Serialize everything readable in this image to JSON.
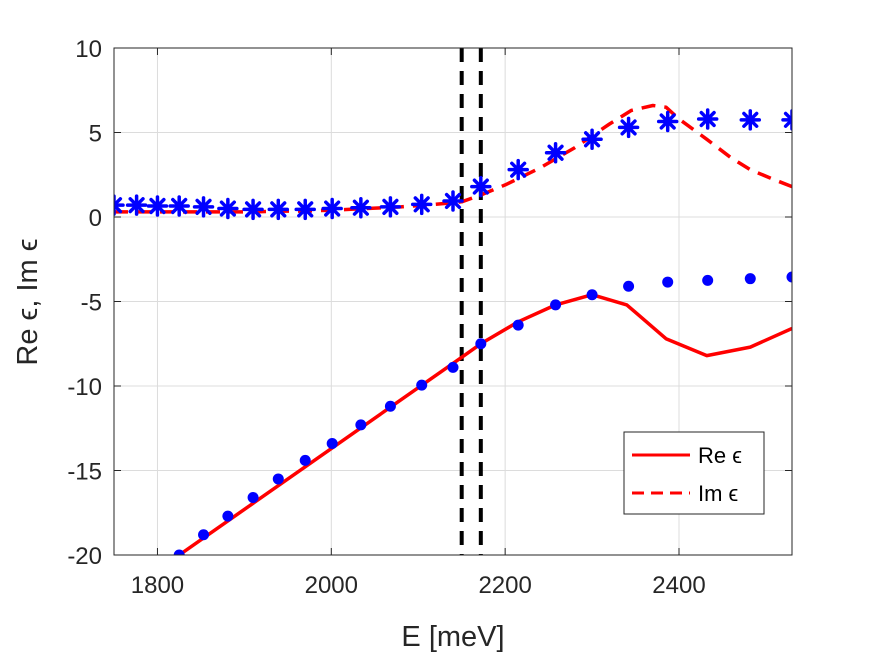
{
  "chart_data": {
    "type": "line",
    "title": "",
    "xlabel": "E [meV]",
    "ylabel": "Re ϵ, Im ϵ",
    "xlim": [
      1750,
      2530
    ],
    "ylim": [
      -20,
      10
    ],
    "xticks": [
      1800,
      2000,
      2200,
      2400
    ],
    "yticks": [
      -20,
      -15,
      -10,
      -5,
      0,
      5,
      10
    ],
    "grid": true,
    "legend_position": "bottom-right",
    "colors": {
      "curve": "#ff0000",
      "marker": "#0000ff",
      "vline": "#000000"
    },
    "series": [
      {
        "name": "Re ϵ",
        "style": "solid",
        "x": [
          1825,
          2150,
          2172,
          2215,
          2258,
          2300,
          2340,
          2385,
          2432,
          2482,
          2530
        ],
        "y": [
          -20,
          -8.3,
          -7.5,
          -6.2,
          -5.2,
          -4.6,
          -5.2,
          -7.2,
          -8.2,
          -7.7,
          -6.6
        ]
      },
      {
        "name": "Im ϵ",
        "style": "dashed",
        "x": [
          1750,
          1780,
          1810,
          1840,
          1880,
          1910,
          1940,
          1970,
          2000,
          2040,
          2080,
          2120,
          2150,
          2172,
          2200,
          2240,
          2280,
          2320,
          2345,
          2370,
          2385,
          2400,
          2432,
          2460,
          2482,
          2510,
          2530
        ],
        "y": [
          0.3,
          0.3,
          0.3,
          0.3,
          0.3,
          0.3,
          0.35,
          0.35,
          0.4,
          0.5,
          0.6,
          0.75,
          0.9,
          1.3,
          1.9,
          2.9,
          4.1,
          5.5,
          6.3,
          6.6,
          6.5,
          5.8,
          4.6,
          3.5,
          2.8,
          2.2,
          1.8
        ]
      },
      {
        "name": "Re ϵ markers",
        "marker": "dot",
        "x": [
          1825,
          1853,
          1881,
          1910,
          1939,
          1970,
          2001,
          2034,
          2068,
          2104,
          2140,
          2172,
          2215,
          2258,
          2300,
          2342,
          2387,
          2433,
          2482,
          2530
        ],
        "y": [
          -20,
          -18.8,
          -17.7,
          -16.6,
          -15.5,
          -14.4,
          -13.4,
          -12.3,
          -11.2,
          -9.95,
          -8.9,
          -7.5,
          -6.4,
          -5.2,
          -4.6,
          -4.1,
          -3.85,
          -3.75,
          -3.65,
          -3.55
        ]
      },
      {
        "name": "Im ϵ markers",
        "marker": "asterisk",
        "x": [
          1750,
          1776,
          1800,
          1825,
          1853,
          1881,
          1910,
          1939,
          1970,
          2001,
          2034,
          2068,
          2104,
          2140,
          2172,
          2215,
          2258,
          2300,
          2342,
          2387,
          2433,
          2482,
          2530
        ],
        "y": [
          0.7,
          0.7,
          0.65,
          0.65,
          0.6,
          0.5,
          0.45,
          0.45,
          0.45,
          0.5,
          0.55,
          0.6,
          0.75,
          0.95,
          1.8,
          2.8,
          3.8,
          4.6,
          5.3,
          5.65,
          5.8,
          5.75,
          5.75
        ]
      }
    ],
    "vlines": [
      2150,
      2172
    ]
  }
}
